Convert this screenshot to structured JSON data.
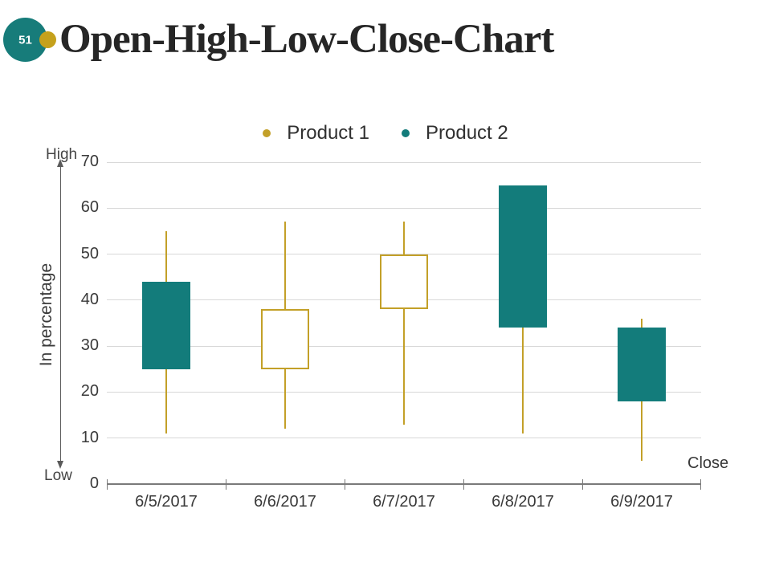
{
  "slide": {
    "number": "51",
    "title": "Open-High-Low-Close-Chart"
  },
  "legend": [
    {
      "label": "Product 1",
      "color": "#C3A028"
    },
    {
      "label": "Product 2",
      "color": "#137C7B"
    }
  ],
  "colors": {
    "teal_accent": "#177C7A",
    "gold_accent": "#C5A11C",
    "title_text": "#262626"
  },
  "chart_data": {
    "type": "candlestick-ohlc",
    "title": "",
    "ylabel": "In percentage",
    "xlabel": "",
    "ylim": [
      0,
      70
    ],
    "y_ticks": [
      0,
      10,
      20,
      30,
      40,
      50,
      60,
      70
    ],
    "grid": true,
    "legend_position": "top",
    "categories": [
      "6/5/2017",
      "6/6/2017",
      "6/7/2017",
      "6/8/2017",
      "6/9/2017"
    ],
    "candles": [
      {
        "date": "6/5/2017",
        "open": 44,
        "high": 55,
        "low": 11,
        "close": 25
      },
      {
        "date": "6/6/2017",
        "open": 25,
        "high": 57,
        "low": 12,
        "close": 38
      },
      {
        "date": "6/7/2017",
        "open": 38,
        "high": 57,
        "low": 13,
        "close": 50
      },
      {
        "date": "6/8/2017",
        "open": 65,
        "high": 65,
        "low": 11,
        "close": 34
      },
      {
        "date": "6/9/2017",
        "open": 34,
        "high": 36,
        "low": 5,
        "close": 18
      }
    ],
    "colors": {
      "wick": "#C3A028",
      "up_fill": "#FFFFFF",
      "up_border": "#C3A028",
      "down_fill": "#137C7B"
    },
    "annotations": {
      "high_label": "High",
      "low_label": "Low",
      "close_label": "Close"
    }
  }
}
